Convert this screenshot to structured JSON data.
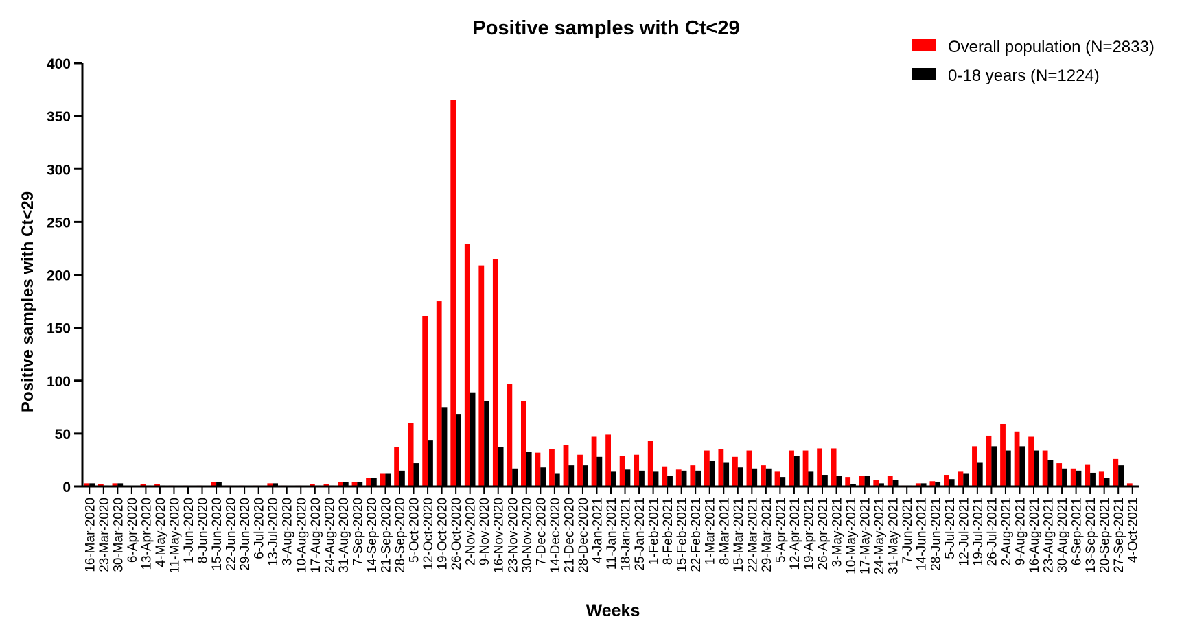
{
  "chart_data": {
    "type": "bar",
    "title": "Positive samples with Ct<29",
    "xlabel": "Weeks",
    "ylabel": "Positive samples with Ct<29",
    "ylim": [
      0,
      400
    ],
    "yticks": [
      0,
      50,
      100,
      150,
      200,
      250,
      300,
      350,
      400
    ],
    "legend_position": "top-right",
    "categories": [
      "16-Mar-2020",
      "23-Mar-2020",
      "30-Mar-2020",
      "6-Apr-2020",
      "13-Apr-2020",
      "4-May-2020",
      "11-May-2020",
      "1-Jun-2020",
      "8-Jun-2020",
      "15-Jun-2020",
      "22-Jun-2020",
      "29-Jun-2020",
      "6-Jul-2020",
      "13-Jul-2020",
      "3-Aug-2020",
      "10-Aug-2020",
      "17-Aug-2020",
      "24-Aug-2020",
      "31-Aug-2020",
      "7-Sep-2020",
      "14-Sep-2020",
      "21-Sep-2020",
      "28-Sep-2020",
      "5-Oct-2020",
      "12-Oct-2020",
      "19-Oct-2020",
      "26-Oct-2020",
      "2-Nov-2020",
      "9-Nov-2020",
      "16-Nov-2020",
      "23-Nov-2020",
      "30-Nov-2020",
      "7-Dec-2020",
      "14-Dec-2020",
      "21-Dec-2020",
      "28-Dec-2020",
      "4-Jan-2021",
      "11-Jan-2021",
      "18-Jan-2021",
      "25-Jan-2021",
      "1-Feb-2021",
      "8-Feb-2021",
      "15-Feb-2021",
      "22-Feb-2021",
      "1-Mar-2021",
      "8-Mar-2021",
      "15-Mar-2021",
      "22-Mar-2021",
      "29-Mar-2021",
      "5-Apr-2021",
      "12-Apr-2021",
      "19-Apr-2021",
      "26-Apr-2021",
      "3-May-2021",
      "10-May-2021",
      "17-May-2021",
      "24-May-2021",
      "31-May-2021",
      "7-Jun-2021",
      "14-Jun-2021",
      "28-Jun-2021",
      "5-Jul-2021",
      "12-Jul-2021",
      "19-Jul-2021",
      "26-Jul-2021",
      "2-Aug-2021",
      "9-Aug-2021",
      "16-Aug-2021",
      "23-Aug-2021",
      "30-Aug-2021",
      "6-Sep-2021",
      "13-Sep-2021",
      "20-Sep-2021",
      "27-Sep-2021",
      "4-Oct-2021"
    ],
    "series": [
      {
        "name": "Overall population (N=2833)",
        "color": "#ff0000",
        "values": [
          3,
          2,
          3,
          0,
          2,
          2,
          1,
          1,
          1,
          4,
          1,
          1,
          1,
          3,
          1,
          1,
          2,
          2,
          4,
          4,
          8,
          12,
          37,
          60,
          161,
          175,
          365,
          229,
          209,
          215,
          97,
          81,
          32,
          35,
          39,
          30,
          47,
          49,
          29,
          30,
          43,
          19,
          16,
          20,
          34,
          35,
          28,
          34,
          20,
          14,
          34,
          34,
          36,
          36,
          9,
          10,
          6,
          10,
          1,
          3,
          5,
          11,
          14,
          38,
          48,
          59,
          52,
          47,
          34,
          22,
          17,
          21,
          14,
          26,
          3
        ]
      },
      {
        "name": "0-18 years (N=1224)",
        "color": "#000000",
        "values": [
          3,
          1,
          3,
          0,
          1,
          1,
          0,
          0,
          0,
          4,
          0,
          0,
          0,
          3,
          0,
          0,
          1,
          1,
          4,
          4,
          8,
          12,
          15,
          22,
          44,
          75,
          68,
          89,
          81,
          37,
          17,
          33,
          18,
          12,
          20,
          20,
          28,
          14,
          16,
          15,
          14,
          10,
          15,
          15,
          24,
          23,
          18,
          17,
          17,
          9,
          29,
          14,
          11,
          10,
          2,
          10,
          3,
          6,
          1,
          3,
          4,
          7,
          12,
          23,
          38,
          34,
          38,
          34,
          25,
          17,
          15,
          13,
          8,
          20,
          1
        ]
      }
    ]
  }
}
